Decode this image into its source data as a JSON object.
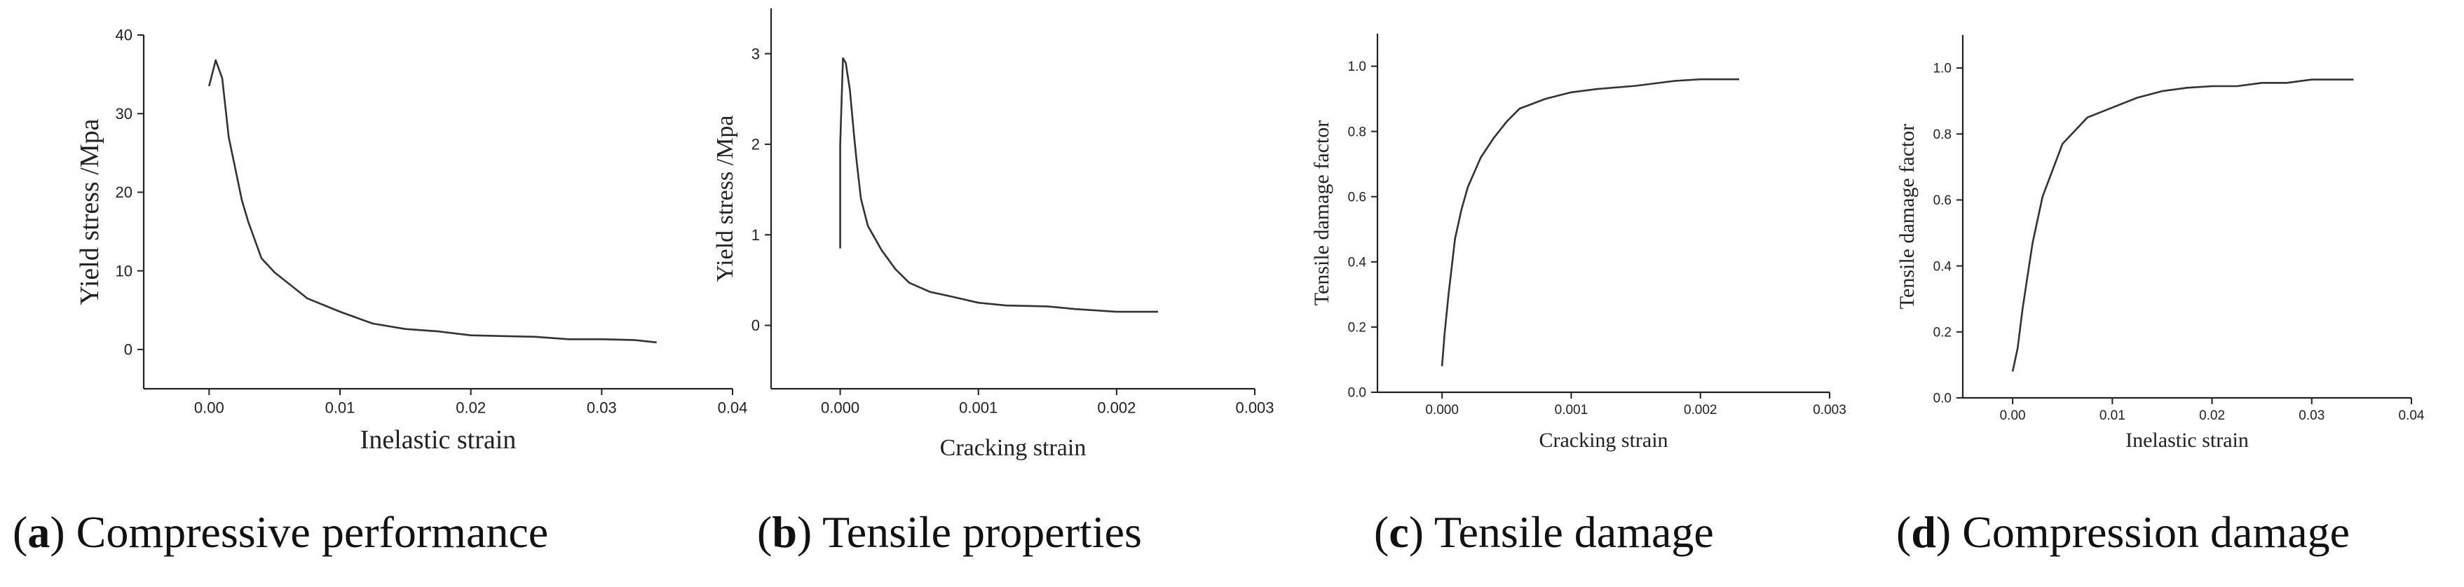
{
  "chart_data": [
    {
      "type": "line",
      "id": "a",
      "caption_letter": "a",
      "caption_text": " Compressive performance",
      "xlabel": "Inelastic strain",
      "ylabel": "Yield stress /Mpa",
      "xlim": [
        -0.005,
        0.04
      ],
      "ylim": [
        -5,
        40
      ],
      "x_ticks": [
        0.0,
        0.01,
        0.02,
        0.03,
        0.04
      ],
      "x_tick_labels": [
        "0.00",
        "0.01",
        "0.02",
        "0.03",
        "0.04"
      ],
      "y_ticks": [
        0,
        10,
        20,
        30,
        40
      ],
      "y_tick_labels": [
        "0",
        "10",
        "20",
        "30",
        "40"
      ],
      "series": [
        {
          "x": [
            0.0,
            0.0005,
            0.001,
            0.0015,
            0.002,
            0.0025,
            0.003,
            0.004,
            0.005,
            0.0075,
            0.01,
            0.0125,
            0.015,
            0.0175,
            0.02,
            0.0225,
            0.025,
            0.0275,
            0.03,
            0.0325,
            0.0342
          ],
          "y": [
            33.5,
            36.8,
            34.5,
            27,
            23,
            19,
            16.2,
            11.6,
            9.8,
            6.5,
            4.8,
            3.3,
            2.6,
            2.3,
            1.8,
            1.7,
            1.6,
            1.3,
            1.3,
            1.2,
            0.9
          ]
        }
      ]
    },
    {
      "type": "line",
      "id": "b",
      "caption_letter": "b",
      "caption_text": " Tensile properties",
      "xlabel": "Cracking strain",
      "ylabel": "Yield stress /Mpa",
      "xlim": [
        -0.0005,
        0.003
      ],
      "ylim": [
        -0.7,
        3.5
      ],
      "x_ticks": [
        0.0,
        0.001,
        0.002,
        0.003
      ],
      "x_tick_labels": [
        "0.000",
        "0.001",
        "0.002",
        "0.003"
      ],
      "y_ticks": [
        0,
        1,
        2,
        3
      ],
      "y_tick_labels": [
        "0",
        "1",
        "2",
        "3"
      ],
      "series": [
        {
          "x": [
            0.0,
            0.0,
            2e-05,
            4e-05,
            7e-05,
            0.0001,
            0.00012,
            0.00015,
            0.0002,
            0.0003,
            0.0004,
            0.0005,
            0.00065,
            0.0008,
            0.001,
            0.0012,
            0.0015,
            0.0017,
            0.002,
            0.0023
          ],
          "y": [
            0.85,
            2.0,
            2.95,
            2.9,
            2.6,
            2.1,
            1.8,
            1.4,
            1.1,
            0.83,
            0.62,
            0.47,
            0.37,
            0.32,
            0.25,
            0.22,
            0.21,
            0.18,
            0.15,
            0.15
          ]
        }
      ]
    },
    {
      "type": "line",
      "id": "c",
      "caption_letter": "c",
      "caption_text": " Tensile damage",
      "xlabel": "Cracking strain",
      "ylabel": "Tensile damage factor",
      "xlim": [
        -0.0005,
        0.003
      ],
      "ylim": [
        0,
        1.1
      ],
      "x_ticks": [
        0.0,
        0.001,
        0.002,
        0.003
      ],
      "x_tick_labels": [
        "0.000",
        "0.001",
        "0.002",
        "0.003"
      ],
      "y_ticks": [
        0,
        0.2,
        0.4,
        0.6,
        0.8,
        1.0
      ],
      "y_tick_labels": [
        "0.0",
        "0.2",
        "0.4",
        "0.6",
        "0.8",
        "1.0"
      ],
      "series": [
        {
          "x": [
            0.0,
            2e-05,
            5e-05,
            0.0001,
            0.00015,
            0.0002,
            0.0003,
            0.0004,
            0.0005,
            0.0006,
            0.0008,
            0.001,
            0.0012,
            0.0015,
            0.0018,
            0.002,
            0.0023
          ],
          "y": [
            0.08,
            0.18,
            0.3,
            0.47,
            0.56,
            0.63,
            0.72,
            0.78,
            0.83,
            0.87,
            0.9,
            0.92,
            0.93,
            0.94,
            0.955,
            0.96,
            0.96
          ]
        }
      ]
    },
    {
      "type": "line",
      "id": "d",
      "caption_letter": "d",
      "caption_text": " Compression damage",
      "xlabel": "Inelastic strain",
      "ylabel": "Tensile damage factor",
      "xlim": [
        -0.005,
        0.04
      ],
      "ylim": [
        0,
        1.1
      ],
      "x_ticks": [
        0.0,
        0.01,
        0.02,
        0.03,
        0.04
      ],
      "x_tick_labels": [
        "0.00",
        "0.01",
        "0.02",
        "0.03",
        "0.04"
      ],
      "y_ticks": [
        0,
        0.2,
        0.4,
        0.6,
        0.8,
        1.0
      ],
      "y_tick_labels": [
        "0.0",
        "0.2",
        "0.4",
        "0.6",
        "0.8",
        "1.0"
      ],
      "series": [
        {
          "x": [
            0.0,
            0.0005,
            0.001,
            0.0015,
            0.002,
            0.003,
            0.004,
            0.005,
            0.0075,
            0.01,
            0.0125,
            0.015,
            0.0175,
            0.02,
            0.0225,
            0.025,
            0.0275,
            0.03,
            0.0325,
            0.0342
          ],
          "y": [
            0.08,
            0.15,
            0.27,
            0.37,
            0.47,
            0.61,
            0.69,
            0.77,
            0.85,
            0.88,
            0.91,
            0.93,
            0.94,
            0.945,
            0.945,
            0.955,
            0.955,
            0.965,
            0.965,
            0.965
          ]
        }
      ]
    }
  ]
}
